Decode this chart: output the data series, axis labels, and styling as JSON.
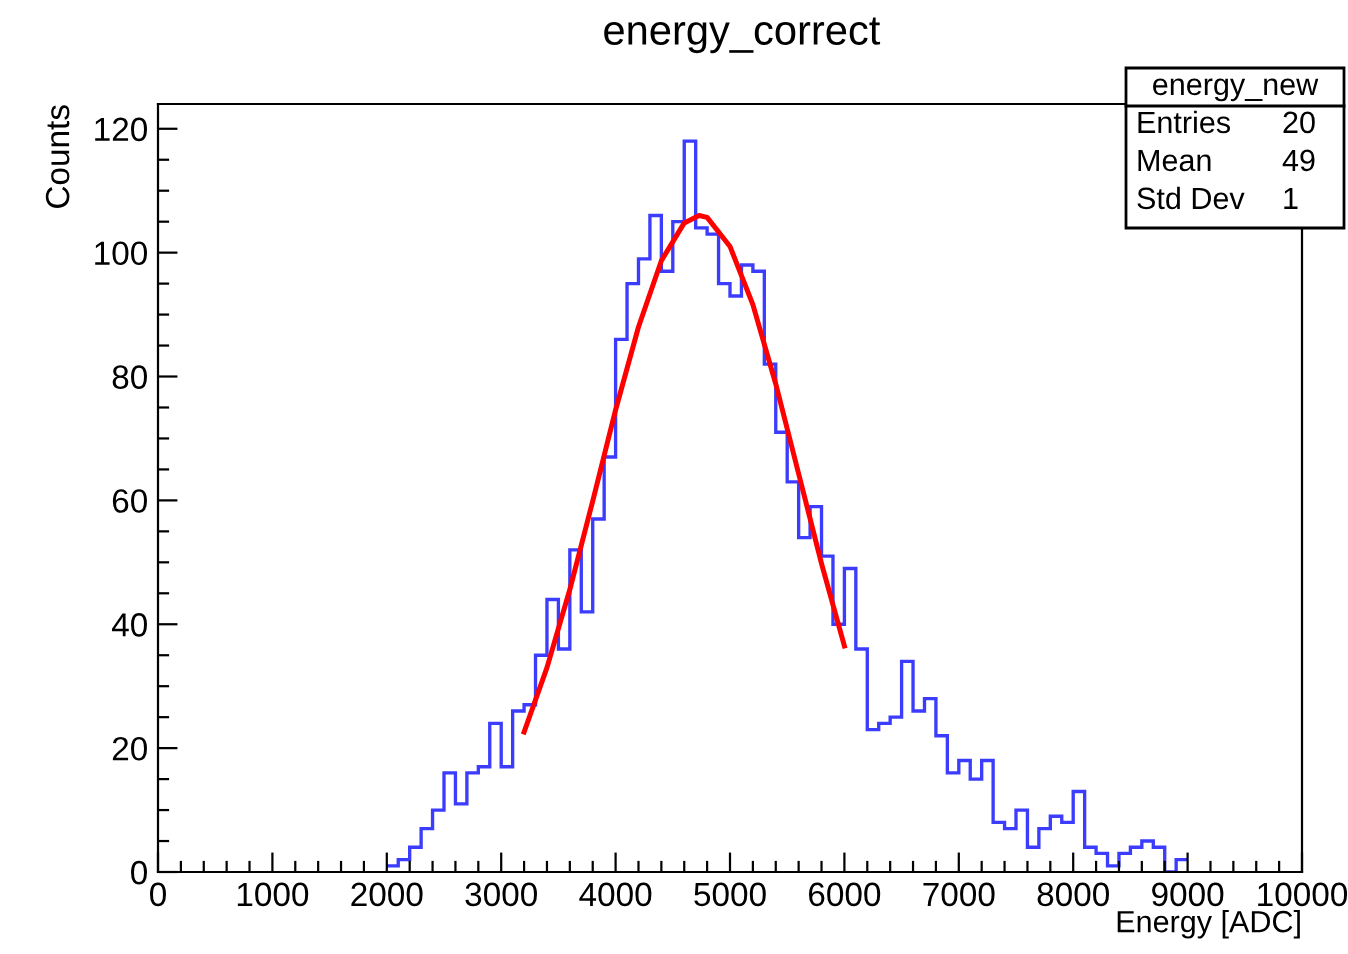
{
  "chart_data": {
    "type": "histogram",
    "title": "energy_correct",
    "xlabel": "Energy [ADC]",
    "ylabel": "Counts",
    "annotations": [
      "energy_new",
      "Entries",
      "20",
      "Mean",
      "49",
      "Std Dev",
      "1"
    ],
    "series": [
      {
        "color": "#3c3cff",
        "bins": [
          2000,
          2100,
          2200,
          2300,
          2400,
          2500,
          2600,
          2700,
          2800,
          2900,
          3000,
          3100,
          3200,
          3300,
          3400,
          3500,
          3600,
          3700,
          3800,
          3900,
          4000,
          4100,
          4200,
          4300,
          4400,
          4500,
          4600,
          4700,
          4800,
          4900,
          5000,
          5100,
          5200,
          5300,
          5400,
          5500,
          5600,
          5700,
          5800,
          5900,
          6000,
          6100,
          6200,
          6300,
          6400,
          6500,
          6600,
          6700,
          6800,
          6900,
          7000,
          7100,
          7200,
          7300,
          7400,
          7500,
          7600,
          7700,
          7800,
          7900,
          8000,
          8100,
          8200,
          8300,
          8400,
          8500,
          8600,
          8700,
          8800,
          8900,
          9000
        ],
        "values": [
          1,
          2,
          4,
          7,
          10,
          16,
          11,
          16,
          17,
          24,
          17,
          26,
          27,
          35,
          44,
          36,
          52,
          42,
          57,
          67,
          86,
          95,
          99,
          106,
          97,
          105,
          118,
          104,
          103,
          95,
          93,
          98,
          97,
          82,
          71,
          63,
          54,
          59,
          51,
          40,
          49,
          36,
          23,
          24,
          25,
          34,
          26,
          28,
          22,
          16,
          18,
          15,
          18,
          8,
          7,
          10,
          4,
          7,
          9,
          8,
          13,
          4,
          3,
          1,
          3,
          4,
          5,
          4,
          0,
          2
        ]
      },
      {
        "type": "line",
        "color": "#ff0000",
        "x": [
          3200,
          3400,
          3600,
          3800,
          4000,
          4200,
          4400,
          4600,
          4730,
          4800,
          5000,
          5200,
          5400,
          5600,
          5800,
          6000
        ],
        "values": [
          22.6,
          33,
          45.6,
          59.9,
          74.6,
          88,
          98.7,
          104.8,
          106,
          105.7,
          101,
          91.6,
          78.8,
          64.3,
          49.8,
          36.5
        ]
      }
    ],
    "xlim": [
      0,
      10000
    ],
    "ylim": [
      0,
      124
    ],
    "xticks": [
      0,
      {
        "value": 200,
        "label": null
      },
      {
        "value": 400,
        "label": null
      },
      {
        "value": 600,
        "label": null
      },
      {
        "value": 800,
        "label": null
      },
      1000,
      {
        "value": 1200,
        "label": null
      },
      {
        "value": 1400,
        "label": null
      },
      {
        "value": 1600,
        "label": null
      },
      {
        "value": 1800,
        "label": null
      },
      2000,
      {
        "value": 2200,
        "label": null
      },
      {
        "value": 2400,
        "label": null
      },
      {
        "value": 2600,
        "label": null
      },
      {
        "value": 2800,
        "label": null
      },
      3000,
      {
        "value": 3200,
        "label": null
      },
      {
        "value": 3400,
        "label": null
      },
      {
        "value": 3600,
        "label": null
      },
      {
        "value": 3800,
        "label": null
      },
      4000,
      {
        "value": 4200,
        "label": null
      },
      {
        "value": 4400,
        "label": null
      },
      {
        "value": 4600,
        "label": null
      },
      {
        "value": 4800,
        "label": null
      },
      5000,
      {
        "value": 5200,
        "label": null
      },
      {
        "value": 5400,
        "label": null
      },
      {
        "value": 5600,
        "label": null
      },
      {
        "value": 5800,
        "label": null
      },
      6000,
      {
        "value": 6200,
        "label": null
      },
      {
        "value": 6400,
        "label": null
      },
      {
        "value": 6600,
        "label": null
      },
      {
        "value": 6800,
        "label": null
      },
      7000,
      {
        "value": 7200,
        "label": null
      },
      {
        "value": 7400,
        "label": null
      },
      {
        "value": 7600,
        "label": null
      },
      {
        "value": 7800,
        "label": null
      },
      8000,
      {
        "value": 8200,
        "label": null
      },
      {
        "value": 8400,
        "label": null
      },
      {
        "value": 8600,
        "label": null
      },
      {
        "value": 8800,
        "label": null
      },
      9000,
      {
        "value": 9200,
        "label": null
      },
      {
        "value": 9400,
        "label": null
      },
      {
        "value": 9600,
        "label": null
      },
      {
        "value": 9800,
        "label": null
      },
      10000
    ],
    "yticks": [
      0,
      {
        "value": 5,
        "label": null
      },
      {
        "value": 10,
        "label": null
      },
      {
        "value": 15,
        "label": null
      },
      20,
      {
        "value": 25,
        "label": null
      },
      {
        "value": 30,
        "label": null
      },
      {
        "value": 35,
        "label": null
      },
      40,
      {
        "value": 45,
        "label": null
      },
      {
        "value": 50,
        "label": null
      },
      {
        "value": 55,
        "label": null
      },
      60,
      {
        "value": 65,
        "label": null
      },
      {
        "value": 70,
        "label": null
      },
      {
        "value": 75,
        "label": null
      },
      80,
      {
        "value": 85,
        "label": null
      },
      {
        "value": 90,
        "label": null
      },
      {
        "value": 95,
        "label": null
      },
      100,
      {
        "value": 105,
        "label": null
      },
      {
        "value": 110,
        "label": null
      },
      {
        "value": 115,
        "label": null
      },
      120
    ]
  }
}
